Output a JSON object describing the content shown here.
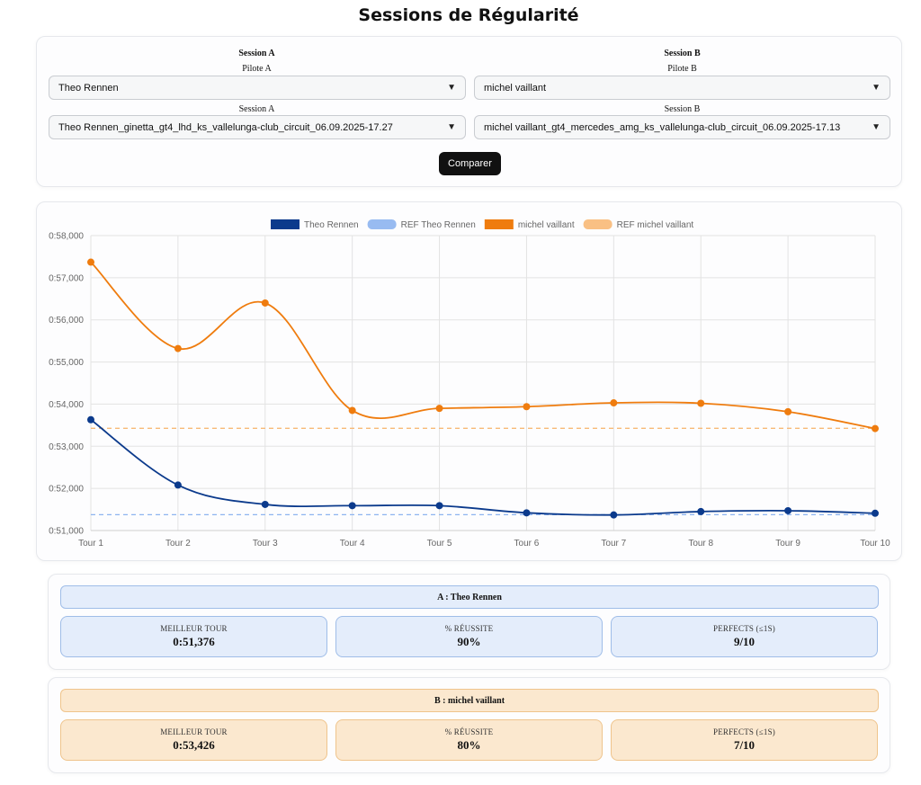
{
  "title": "Sessions de Régularité",
  "form": {
    "colA": {
      "heading": "Session A",
      "pilot_label": "Pilote A",
      "pilot_value": "Theo Rennen",
      "session_label": "Session A",
      "session_value": "Theo Rennen_ginetta_gt4_lhd_ks_vallelunga-club_circuit_06.09.2025-17.27"
    },
    "colB": {
      "heading": "Session B",
      "pilot_label": "Pilote B",
      "pilot_value": "michel vaillant",
      "session_label": "Session B",
      "session_value": "michel vaillant_gt4_mercedes_amg_ks_vallelunga-club_circuit_06.09.2025-17.13"
    },
    "compare_label": "Comparer",
    "chevron_icon": "chevron-down-icon"
  },
  "chart_data": {
    "type": "line",
    "categories": [
      "Tour 1",
      "Tour 2",
      "Tour 3",
      "Tour 4",
      "Tour 5",
      "Tour 6",
      "Tour 7",
      "Tour 8",
      "Tour 9",
      "Tour 10"
    ],
    "ylim": [
      51.0,
      58.0
    ],
    "yticks": [
      "0:51,000",
      "0:52,000",
      "0:53,000",
      "0:54,000",
      "0:55,000",
      "0:56,000",
      "0:57,000",
      "0:58,000"
    ],
    "grid": true,
    "legend_position": "top",
    "series": [
      {
        "name": "Theo Rennen",
        "color": "#0b3a8c",
        "dashed": false,
        "values": [
          53.63,
          52.08,
          51.62,
          51.59,
          51.59,
          51.42,
          51.37,
          51.45,
          51.47,
          51.41
        ]
      },
      {
        "name": "REF Theo Rennen",
        "color": "#8db4f0",
        "dashed": true,
        "values": [
          51.376,
          51.376,
          51.376,
          51.376,
          51.376,
          51.376,
          51.376,
          51.376,
          51.376,
          51.376
        ]
      },
      {
        "name": "michel vaillant",
        "color": "#ef7c0e",
        "dashed": false,
        "values": [
          57.37,
          55.32,
          56.4,
          53.85,
          53.9,
          53.94,
          54.03,
          54.02,
          53.82,
          53.42
        ]
      },
      {
        "name": "REF michel vaillant",
        "color": "#f8b977",
        "dashed": true,
        "values": [
          53.426,
          53.426,
          53.426,
          53.426,
          53.426,
          53.426,
          53.426,
          53.426,
          53.426,
          53.426
        ]
      }
    ]
  },
  "stats": {
    "a": {
      "header": "A : Theo Rennen",
      "best_label": "MEILLEUR TOUR",
      "best_value": "0:51,376",
      "success_label": "% RÉUSSITE",
      "success_value": "90%",
      "perfects_label": "PERFECTS (≤1S)",
      "perfects_value": "9/10"
    },
    "b": {
      "header": "B : michel vaillant",
      "best_label": "MEILLEUR TOUR",
      "best_value": "0:53,426",
      "success_label": "% RÉUSSITE",
      "success_value": "80%",
      "perfects_label": "PERFECTS (≤1S)",
      "perfects_value": "7/10"
    }
  }
}
